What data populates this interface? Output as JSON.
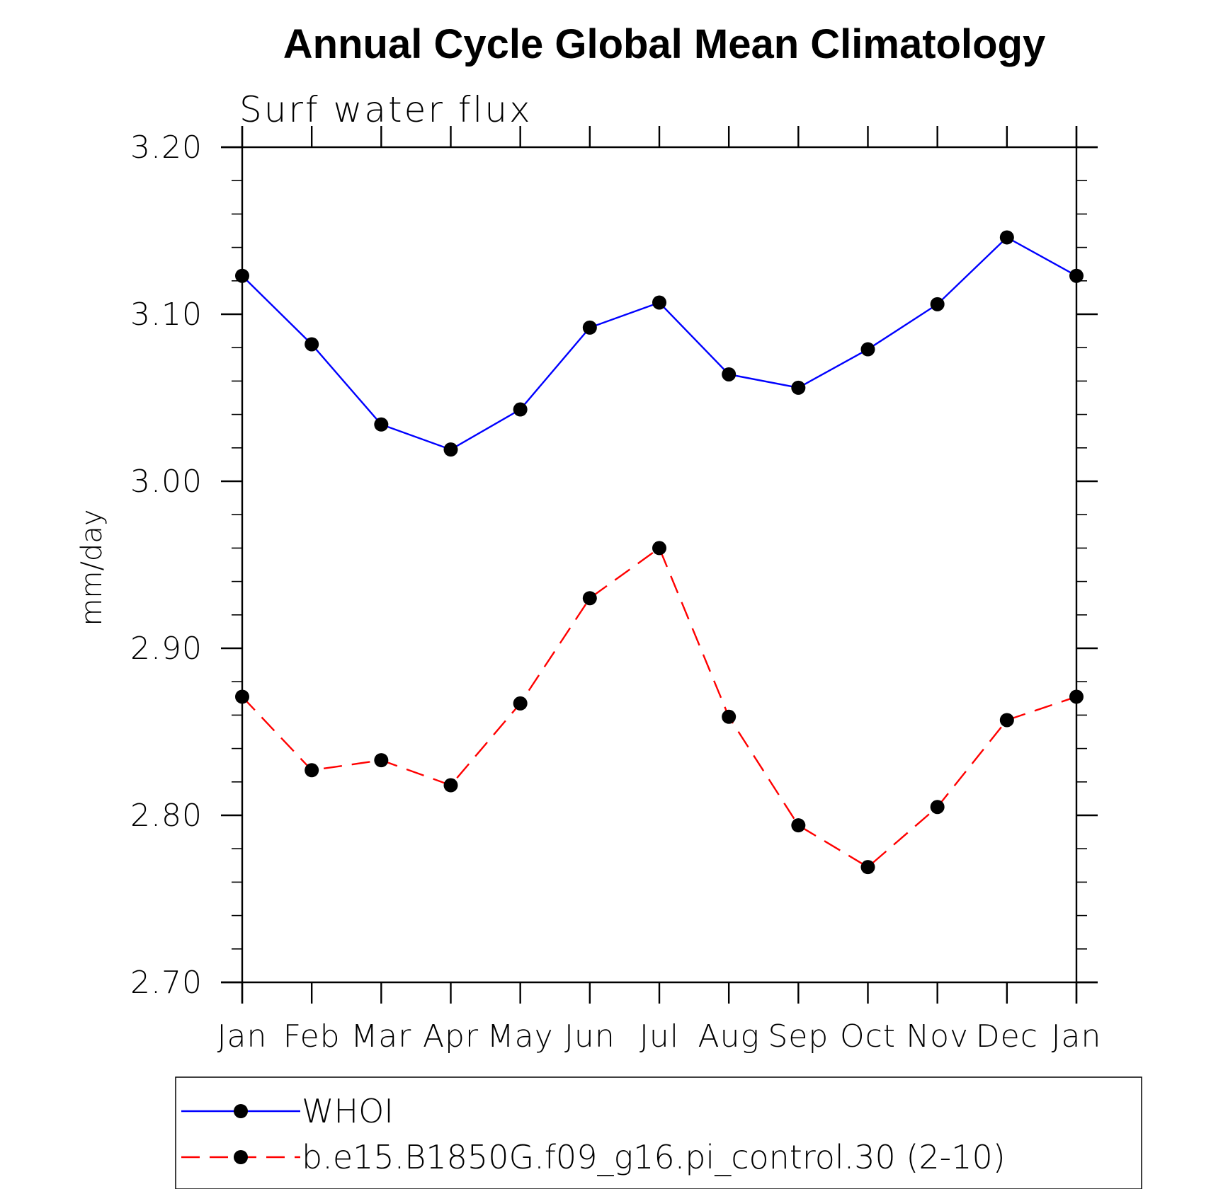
{
  "chart_data": {
    "type": "line",
    "title": "Annual Cycle Global Mean Climatology",
    "subtitle": "Surf water flux",
    "xlabel": "",
    "ylabel": "mm/day",
    "categories": [
      "Jan",
      "Feb",
      "Mar",
      "Apr",
      "May",
      "Jun",
      "Jul",
      "Aug",
      "Sep",
      "Oct",
      "Nov",
      "Dec",
      "Jan"
    ],
    "ylim": [
      2.7,
      3.2
    ],
    "yticks": [
      "2.70",
      "2.80",
      "2.90",
      "3.00",
      "3.10",
      "3.20"
    ],
    "ytick_values": [
      2.7,
      2.8,
      2.9,
      3.0,
      3.1,
      3.2
    ],
    "grid": false,
    "legend_position": "bottom",
    "series": [
      {
        "name": "WHOI",
        "color": "#0000ff",
        "dash": "solid",
        "marker": "filled-circle",
        "values": [
          3.123,
          3.082,
          3.034,
          3.019,
          3.043,
          3.092,
          3.107,
          3.064,
          3.056,
          3.079,
          3.106,
          3.146,
          3.123
        ]
      },
      {
        "name": "b.e15.B1850G.f09_g16.pi_control.30 (2-10)",
        "color": "#ff0000",
        "dash": "dashed",
        "marker": "filled-circle",
        "values": [
          2.871,
          2.827,
          2.833,
          2.818,
          2.867,
          2.93,
          2.96,
          2.859,
          2.794,
          2.769,
          2.805,
          2.857,
          2.871
        ]
      }
    ]
  }
}
